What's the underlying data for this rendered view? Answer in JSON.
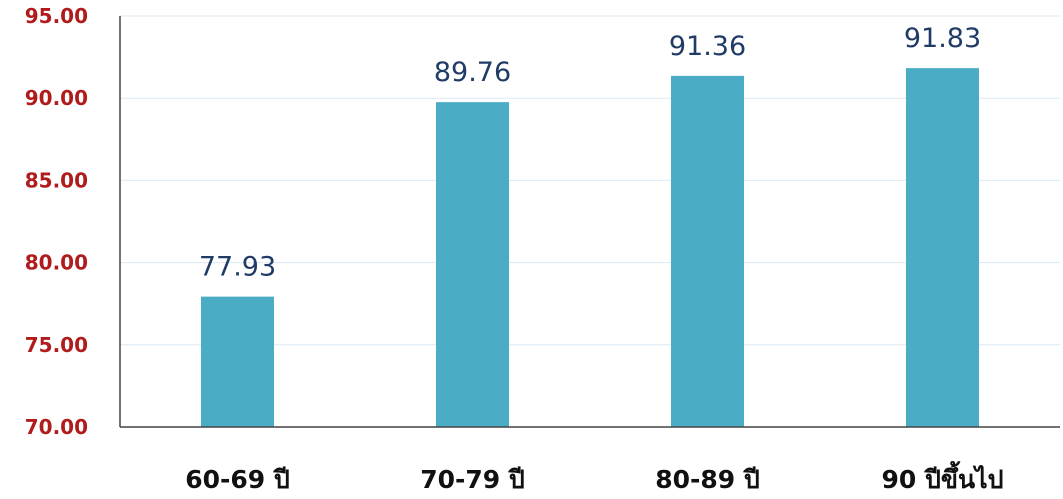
{
  "chart_data": {
    "type": "bar",
    "title": "",
    "xlabel": "",
    "ylabel": "",
    "categories": [
      "60-69 ปี",
      "70-79 ปี",
      "80-89 ปี",
      "90 ปีขึ้นไป"
    ],
    "values": [
      77.93,
      89.76,
      91.36,
      91.83
    ],
    "data_labels": [
      "77.93",
      "89.76",
      "91.36",
      "91.83"
    ],
    "ylim": [
      70,
      95
    ],
    "yticks": [
      "70.00",
      "75.00",
      "80.00",
      "85.00",
      "90.00",
      "95.00"
    ],
    "grid": true,
    "legend": "none",
    "colors": {
      "bar": "#4bacc6",
      "ytick": "#b01c1c",
      "xtick": "#111111",
      "data_label": "#1f3b66",
      "grid": "#dde9f2"
    }
  }
}
